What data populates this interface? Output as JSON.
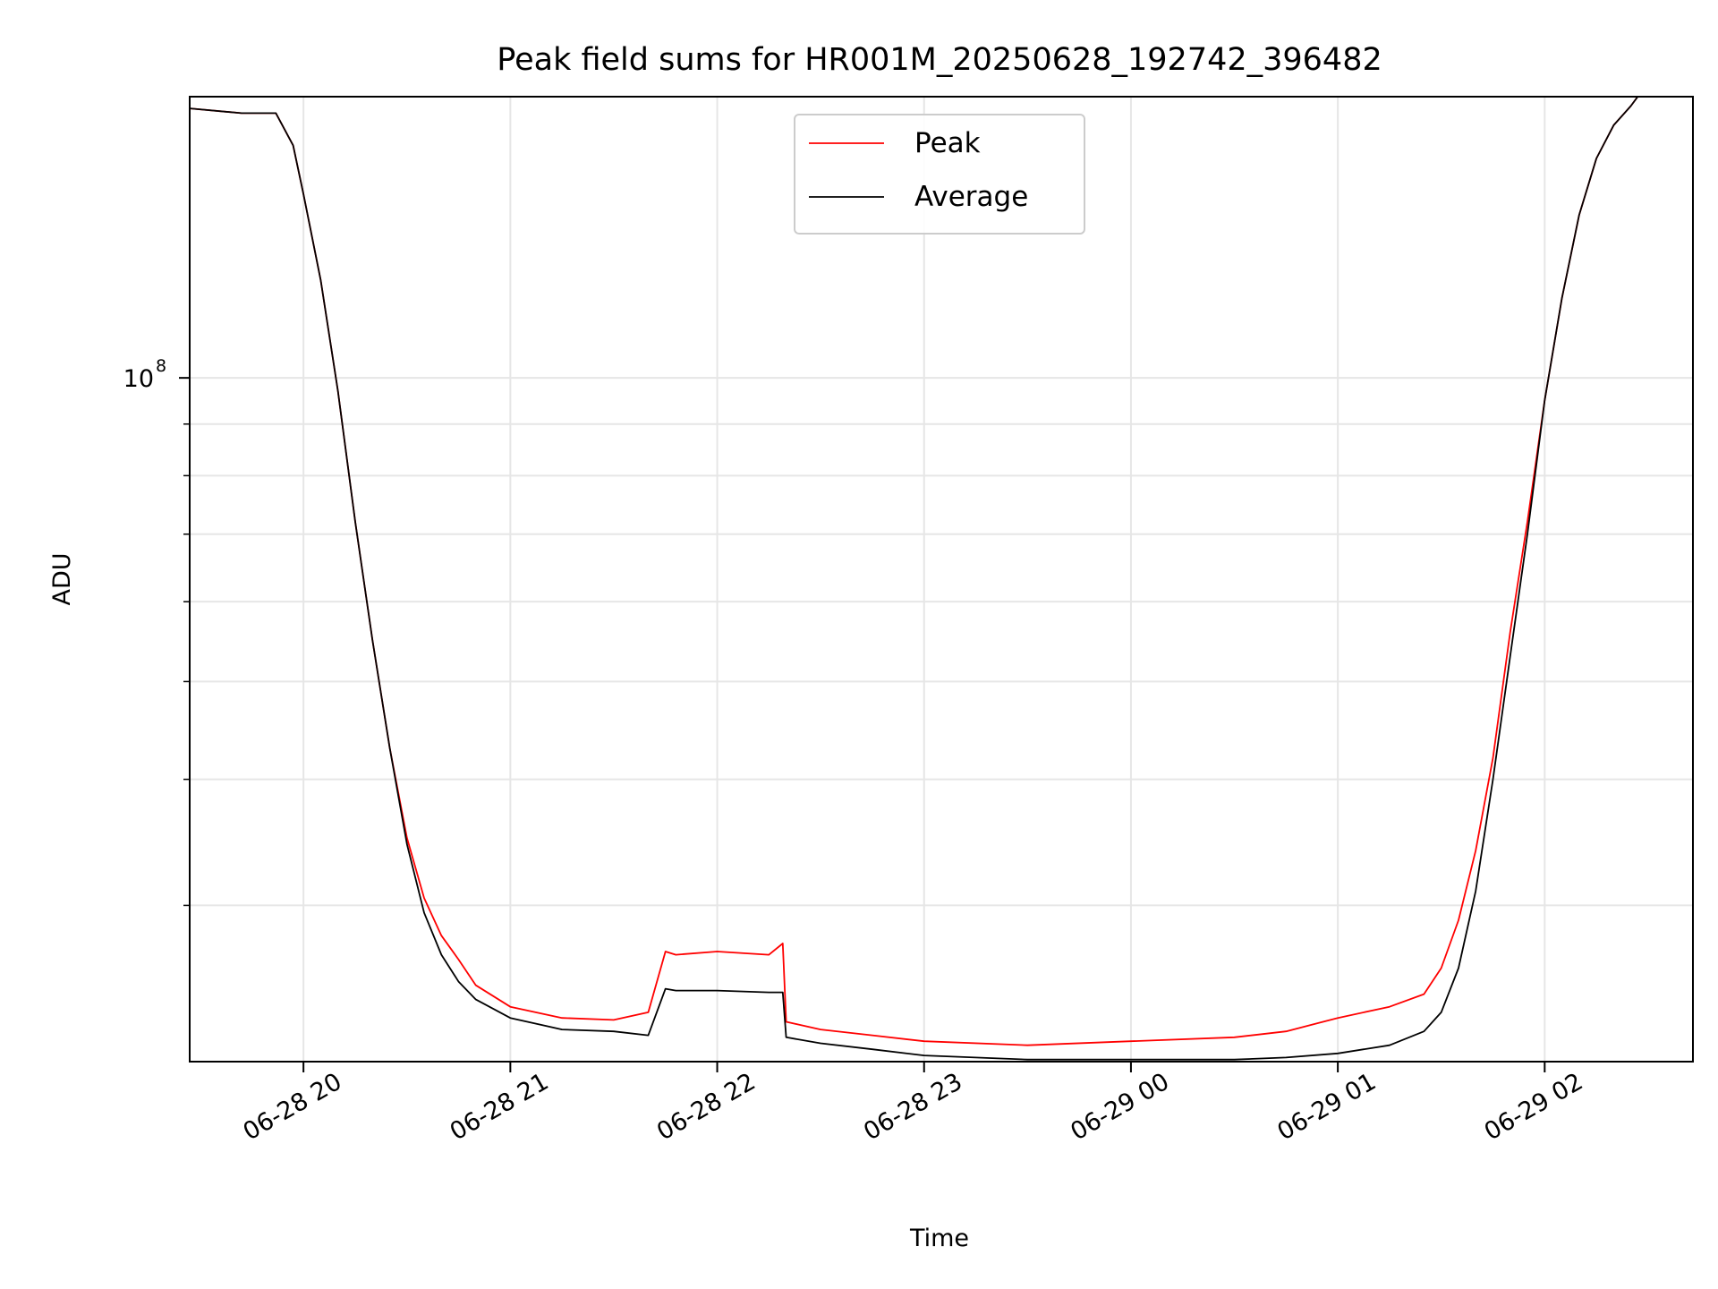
{
  "chart_data": {
    "type": "line",
    "title": "Peak field sums for HR001M_20250628_192742_396482",
    "xlabel": "Time",
    "ylabel": "ADU",
    "y_scale": "log",
    "ylim": [
      21000000,
      190000000
    ],
    "xlim": [
      "2025-06-28 19:27",
      "2025-06-29 02:43"
    ],
    "grid": true,
    "legend_position": "top-center",
    "x_tick_labels": [
      "06-28 20",
      "06-28 21",
      "06-28 22",
      "06-28 23",
      "06-29 00",
      "06-29 01",
      "06-29 02"
    ],
    "x_ticks": [
      "2025-06-28 20:00",
      "2025-06-28 21:00",
      "2025-06-28 22:00",
      "2025-06-28 23:00",
      "2025-06-29 00:00",
      "2025-06-29 01:00",
      "2025-06-29 02:00"
    ],
    "y_major_tick": {
      "value": 100000000,
      "label_base": "10",
      "label_exp": "8"
    },
    "y_minor_ticks": [
      30000000,
      40000000,
      50000000,
      60000000,
      70000000,
      80000000,
      90000000,
      200000000
    ],
    "x": [
      "2025-06-28 19:27",
      "2025-06-28 19:42",
      "2025-06-28 19:52",
      "2025-06-28 19:57",
      "2025-06-28 20:00",
      "2025-06-28 20:05",
      "2025-06-28 20:10",
      "2025-06-28 20:15",
      "2025-06-28 20:20",
      "2025-06-28 20:25",
      "2025-06-28 20:30",
      "2025-06-28 20:35",
      "2025-06-28 20:40",
      "2025-06-28 20:45",
      "2025-06-28 20:50",
      "2025-06-28 21:00",
      "2025-06-28 21:15",
      "2025-06-28 21:30",
      "2025-06-28 21:40",
      "2025-06-28 21:45",
      "2025-06-28 21:48",
      "2025-06-28 22:00",
      "2025-06-28 22:15",
      "2025-06-28 22:19",
      "2025-06-28 22:20",
      "2025-06-28 22:30",
      "2025-06-28 22:45",
      "2025-06-28 23:00",
      "2025-06-28 23:30",
      "2025-06-29 00:00",
      "2025-06-29 00:30",
      "2025-06-29 00:45",
      "2025-06-29 01:00",
      "2025-06-29 01:15",
      "2025-06-29 01:25",
      "2025-06-29 01:30",
      "2025-06-29 01:35",
      "2025-06-29 01:40",
      "2025-06-29 01:45",
      "2025-06-29 01:50",
      "2025-06-29 01:55",
      "2025-06-29 02:00",
      "2025-06-29 02:05",
      "2025-06-29 02:10",
      "2025-06-29 02:15",
      "2025-06-29 02:20",
      "2025-06-29 02:25",
      "2025-06-29 02:27",
      "2025-06-29 02:43"
    ],
    "series": [
      {
        "name": "Peak",
        "color": "#ff0000",
        "values": [
          185000000,
          183000000,
          183000000,
          170000000,
          152000000,
          125000000,
          97000000,
          72000000,
          55000000,
          43000000,
          35000000,
          30500000,
          28000000,
          26500000,
          25000000,
          23800000,
          23200000,
          23100000,
          23500000,
          27000000,
          26800000,
          27000000,
          26800000,
          27500000,
          23000000,
          22600000,
          22300000,
          22000000,
          21800000,
          22000000,
          22200000,
          22500000,
          23200000,
          23800000,
          24500000,
          26000000,
          29000000,
          34000000,
          42000000,
          56000000,
          72000000,
          95000000,
          120000000,
          145000000,
          165000000,
          178000000,
          186000000,
          190000000,
          190000000
        ]
      },
      {
        "name": "Average",
        "color": "#000000",
        "values": [
          185000000,
          183000000,
          183000000,
          170000000,
          152000000,
          125000000,
          97000000,
          72000000,
          55000000,
          43000000,
          34500000,
          29500000,
          26800000,
          25200000,
          24200000,
          23200000,
          22600000,
          22500000,
          22300000,
          24800000,
          24700000,
          24700000,
          24600000,
          24600000,
          22200000,
          21900000,
          21600000,
          21300000,
          21100000,
          21100000,
          21100000,
          21200000,
          21400000,
          21800000,
          22500000,
          23500000,
          26000000,
          31000000,
          40000000,
          53000000,
          70000000,
          95000000,
          120000000,
          145000000,
          165000000,
          178000000,
          186000000,
          190000000,
          190000000
        ]
      }
    ]
  }
}
